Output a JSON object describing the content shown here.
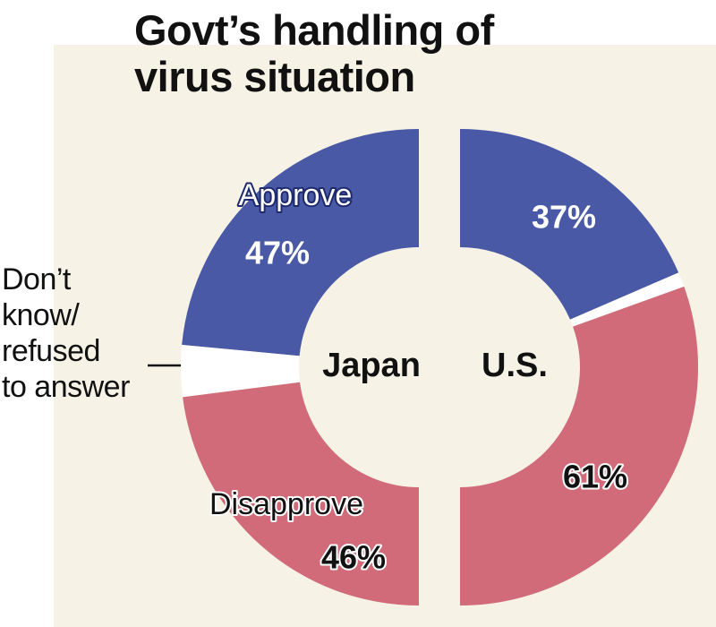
{
  "chart_data": {
    "type": "donut",
    "title": "Govt’s handling of\nvirus situation",
    "categories": [
      "Approve",
      "Don’t\nknow/\nrefused\nto answer",
      "Disapprove"
    ],
    "colors": [
      "#4a59a6",
      "#ffffff",
      "#d16b79"
    ],
    "series": [
      {
        "name": "Japan",
        "values": [
          47,
          7,
          46
        ],
        "value_labels": [
          "47%",
          null,
          "46%"
        ]
      },
      {
        "name": "U.S.",
        "values": [
          37,
          2,
          61
        ],
        "value_labels": [
          "37%",
          null,
          "61%"
        ]
      }
    ]
  }
}
